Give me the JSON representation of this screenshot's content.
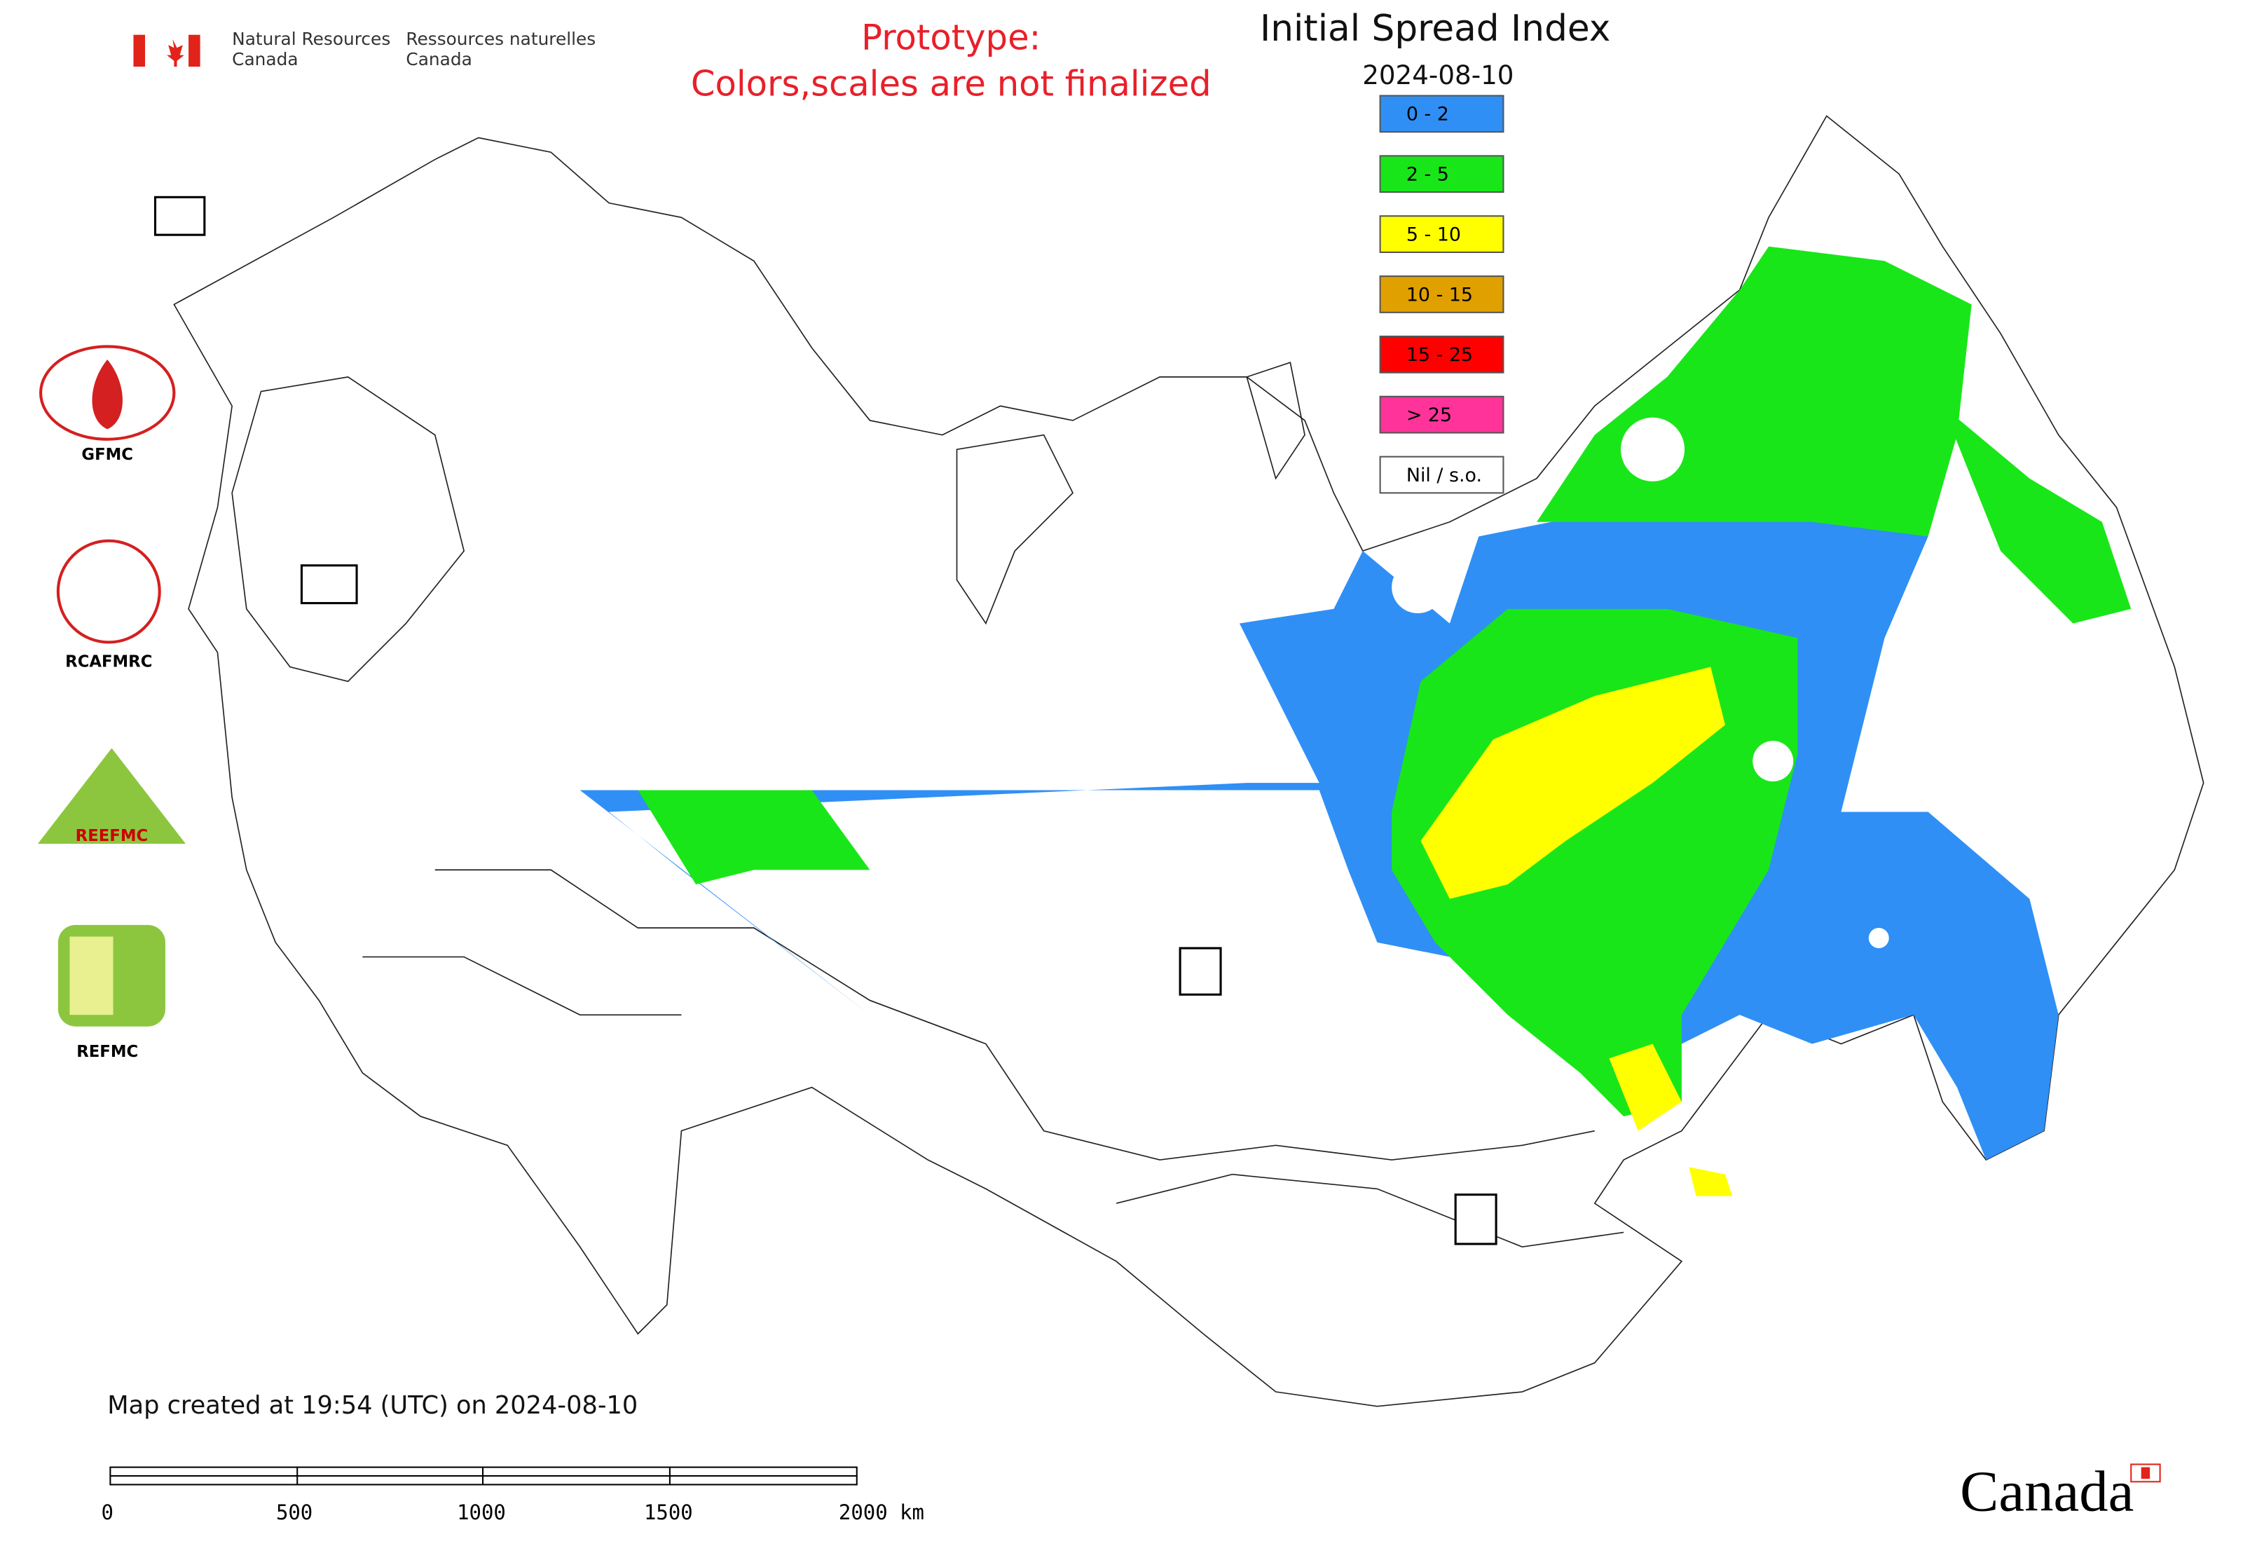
{
  "header": {
    "agency_en": [
      "Natural Resources",
      "Canada"
    ],
    "agency_fr": [
      "Ressources naturelles",
      "Canada"
    ],
    "notice": [
      "Prototype:",
      "Colors,scales are not finalized"
    ]
  },
  "map": {
    "title": "Initial Spread Index",
    "date": "2024-08-10",
    "legend": [
      {
        "label": "0 - 2",
        "color": "#2f8ff5"
      },
      {
        "label": "2 - 5",
        "color": "#19e619"
      },
      {
        "label": "5 - 10",
        "color": "#ffff00"
      },
      {
        "label": "10 - 15",
        "color": "#e0a000"
      },
      {
        "label": "15 - 25",
        "color": "#ff0000"
      },
      {
        "label": "> 25",
        "color": "#ff3399"
      },
      {
        "label": "Nil / s.o.",
        "color": "#ffffff"
      }
    ]
  },
  "logos": [
    "GFMC",
    "RCAFMRC",
    "REEFMC",
    "REFMC"
  ],
  "footer": {
    "created": "Map created at 19:54 (UTC) on 2024-08-10",
    "scale_labels": [
      "0",
      "500",
      "1000",
      "1500",
      "2000 km"
    ],
    "wordmark": "Canada"
  }
}
